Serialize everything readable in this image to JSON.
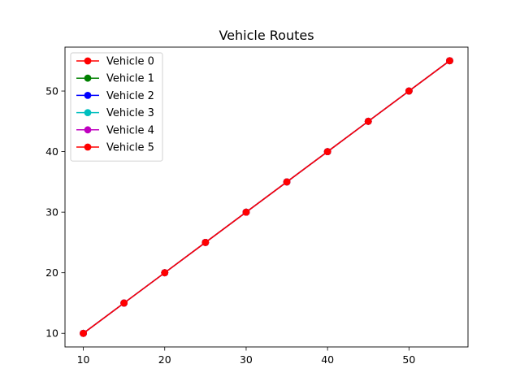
{
  "chart_data": {
    "type": "line",
    "title": "Vehicle Routes",
    "xlabel": "",
    "ylabel": "",
    "xlim": [
      7.75,
      57.25
    ],
    "ylim": [
      7.75,
      57.25
    ],
    "xticks": [
      10,
      20,
      30,
      40,
      50
    ],
    "yticks": [
      10,
      20,
      30,
      40,
      50
    ],
    "grid": false,
    "legend_position": "top-left",
    "marker": "circle",
    "series": [
      {
        "name": "Vehicle 0",
        "color": "#ff0000",
        "x": [
          10,
          15,
          20,
          25,
          30,
          35,
          40,
          45,
          50,
          55
        ],
        "y": [
          10,
          15,
          20,
          25,
          30,
          35,
          40,
          45,
          50,
          55
        ]
      },
      {
        "name": "Vehicle 1",
        "color": "#008000",
        "x": [
          10,
          15,
          20,
          25,
          30,
          35,
          40,
          45,
          50,
          55
        ],
        "y": [
          10,
          15,
          20,
          25,
          30,
          35,
          40,
          45,
          50,
          55
        ]
      },
      {
        "name": "Vehicle 2",
        "color": "#0000ff",
        "x": [
          10,
          15,
          20,
          25,
          30,
          35,
          40,
          45,
          50,
          55
        ],
        "y": [
          10,
          15,
          20,
          25,
          30,
          35,
          40,
          45,
          50,
          55
        ]
      },
      {
        "name": "Vehicle 3",
        "color": "#00bfbf",
        "x": [
          10,
          15,
          20,
          25,
          30,
          35,
          40,
          45,
          50,
          55
        ],
        "y": [
          10,
          15,
          20,
          25,
          30,
          35,
          40,
          45,
          50,
          55
        ]
      },
      {
        "name": "Vehicle 4",
        "color": "#bf00bf",
        "x": [
          10,
          15,
          20,
          25,
          30,
          35,
          40,
          45,
          50,
          55
        ],
        "y": [
          10,
          15,
          20,
          25,
          30,
          35,
          40,
          45,
          50,
          55
        ]
      },
      {
        "name": "Vehicle 5",
        "color": "#ff0000",
        "x": [
          10,
          15,
          20,
          25,
          30,
          35,
          40,
          45,
          50,
          55
        ],
        "y": [
          10,
          15,
          20,
          25,
          30,
          35,
          40,
          45,
          50,
          55
        ]
      }
    ]
  }
}
